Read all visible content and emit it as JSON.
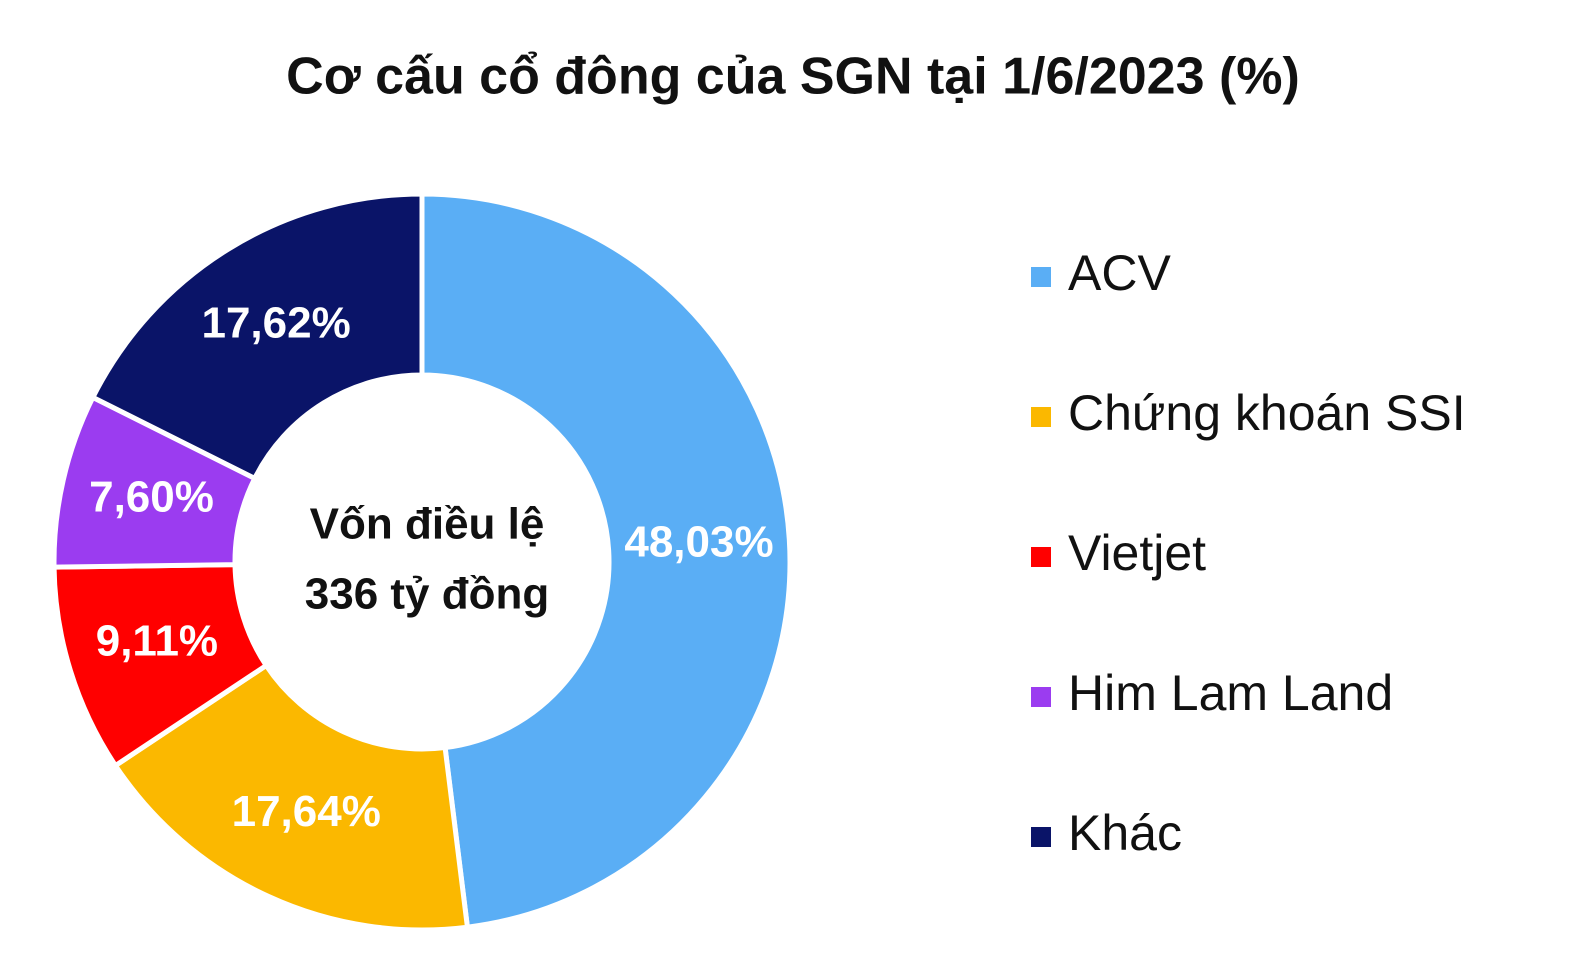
{
  "chart_data": {
    "type": "donut",
    "title": "Cơ cấu cổ đông của SGN tại 1/6/2023 (%)",
    "center_text": [
      "Vốn điều lệ",
      "336 tỷ đồng"
    ],
    "categories": [
      "ACV",
      "Chứng khoán SSI",
      "Vietjet",
      "Him Lam Land",
      "Khác"
    ],
    "values": [
      48.03,
      17.64,
      9.11,
      7.6,
      17.62
    ],
    "value_labels": [
      "48,03%",
      "17,64%",
      "9,11%",
      "7,60%",
      "17,62%"
    ],
    "colors": [
      "#5aaef5",
      "#fbb800",
      "#ff0000",
      "#9b3cf0",
      "#0a1468"
    ],
    "legend": "right"
  }
}
